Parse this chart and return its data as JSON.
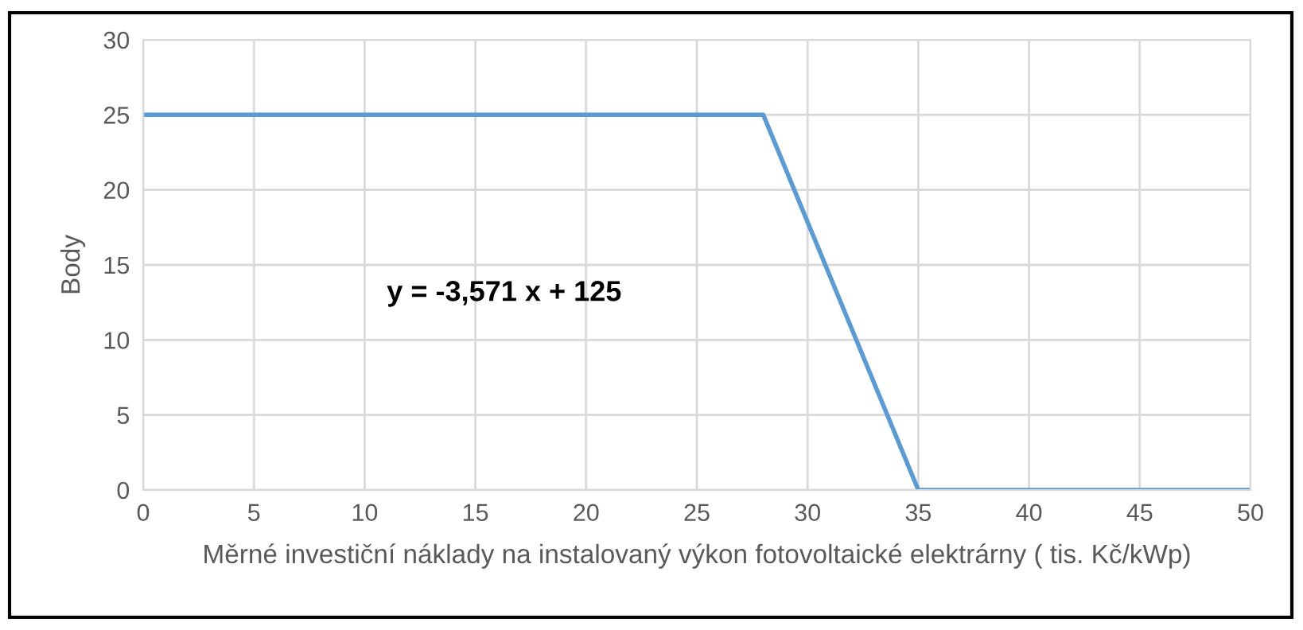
{
  "chart_data": {
    "type": "line",
    "xlabel": "Měrné investiční náklady na instalovaný výkon fotovoltaické elektrárny ( tis. Kč/kWp)",
    "ylabel": "Body",
    "x": [
      0,
      28,
      35,
      50
    ],
    "series": [
      {
        "color": "#5b9bd5",
        "values": [
          25,
          25,
          0,
          0
        ]
      }
    ],
    "xlim": [
      0,
      50
    ],
    "xticks": [
      0,
      5,
      10,
      15,
      20,
      25,
      30,
      35,
      40,
      45,
      50
    ],
    "ylim": [
      0,
      30
    ],
    "yticks": [
      0,
      5,
      10,
      15,
      20,
      25,
      30
    ],
    "grid": true,
    "marker": "none",
    "line_style": "solid",
    "annotations": [
      "y = -3,571 x + 125"
    ]
  }
}
